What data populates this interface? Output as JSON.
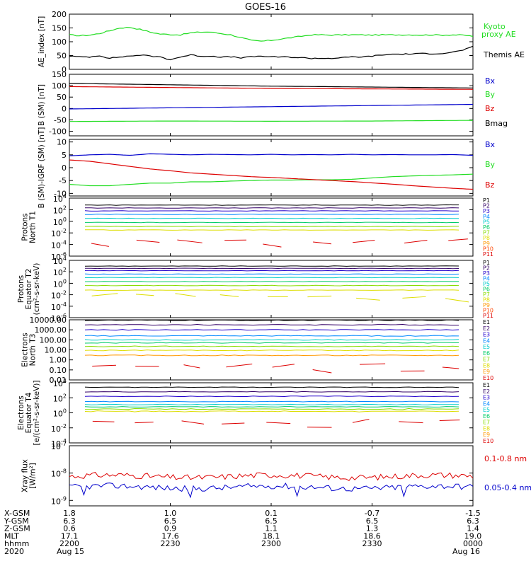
{
  "title": "GOES-16",
  "colors": {
    "black": "#000000",
    "red": "#dd0000",
    "green": "#22dd22",
    "blue": "#0000cc",
    "P": [
      "#000000",
      "#330066",
      "#2200cc",
      "#0088ff",
      "#00cccc",
      "#00cc66",
      "#88dd00",
      "#dddd00",
      "#ff9900",
      "#ff4400",
      "#dd0000"
    ],
    "E": [
      "#000000",
      "#330066",
      "#2200cc",
      "#0088ff",
      "#00cccc",
      "#00cc66",
      "#88dd00",
      "#dddd00",
      "#ff9900",
      "#dd0000"
    ]
  },
  "chart_data": [
    {
      "id": "ae",
      "type": "line",
      "ylabel": "AE_index [nT]",
      "ylim": [
        0,
        200
      ],
      "ticks": [
        "0",
        "50",
        "100",
        "150",
        "200"
      ],
      "tick_values": [
        0,
        50,
        100,
        150,
        200
      ],
      "series": [
        {
          "name": "Kyoto proxy AE",
          "legend": [
            "Kyoto",
            "proxy AE"
          ],
          "color": "#22dd22",
          "values": [
            125,
            122,
            124,
            130,
            140,
            150,
            152,
            145,
            135,
            128,
            126,
            125,
            132,
            135,
            135,
            130,
            125,
            115,
            105,
            102,
            105,
            110,
            115,
            120,
            125,
            125,
            124,
            125,
            125,
            125,
            124,
            125,
            125,
            125,
            125,
            124,
            125,
            124,
            125,
            124,
            120
          ]
        },
        {
          "name": "Themis AE",
          "legend": [
            "Themis AE"
          ],
          "color": "#000000",
          "values": [
            48,
            45,
            45,
            50,
            40,
            45,
            48,
            52,
            48,
            45,
            35,
            45,
            52,
            48,
            48,
            45,
            45,
            42,
            45,
            48,
            45,
            45,
            44,
            42,
            40,
            40,
            40,
            42,
            45,
            45,
            48,
            52,
            55,
            55,
            56,
            57,
            57,
            58,
            62,
            70,
            82
          ]
        }
      ]
    },
    {
      "id": "bsm",
      "type": "line",
      "ylabel": "B (SM) [nT]",
      "ylim": [
        -120,
        150
      ],
      "ticks": [
        "150",
        "100",
        "50",
        "0",
        "-50",
        "-100"
      ],
      "tick_values": [
        150,
        100,
        50,
        0,
        -50,
        -100
      ],
      "series": [
        {
          "name": "Bx",
          "color": "#0000cc",
          "values": [
            -2,
            18
          ]
        },
        {
          "name": "By",
          "color": "#22dd22",
          "values": [
            -57,
            -55,
            -56,
            -55,
            -52
          ]
        },
        {
          "name": "Bz",
          "color": "#dd0000",
          "values": [
            96,
            88,
            84
          ]
        },
        {
          "name": "Bmag",
          "color": "#000000",
          "values": [
            110,
            98,
            90
          ]
        }
      ]
    },
    {
      "id": "bigrf",
      "type": "line",
      "ylabel": "B (SM)-IGRF (SM) [nT]",
      "ylim": [
        -11,
        11
      ],
      "ticks": [
        "10",
        "5",
        "0",
        "-5",
        "-10"
      ],
      "tick_values": [
        10,
        5,
        0,
        -5,
        -10
      ],
      "series": [
        {
          "name": "Bx",
          "color": "#0000cc",
          "values": [
            4.6,
            5.0,
            5.2,
            4.8,
            5.4,
            5.2,
            5.0,
            5.2,
            5.1,
            5.0,
            5.2,
            5.0,
            5.1,
            5.0,
            5.2,
            5.0,
            5.1,
            5.0,
            5.0,
            5.1,
            4.8
          ]
        },
        {
          "name": "By",
          "color": "#22dd22",
          "values": [
            -6.5,
            -7,
            -7,
            -6.5,
            -6,
            -6,
            -5.5,
            -5.5,
            -5.2,
            -5.0,
            -4.8,
            -4.8,
            -4.7,
            -4.7,
            -4.5,
            -4.0,
            -3.5,
            -3.2,
            -3.0,
            -2.8,
            -2.5
          ]
        },
        {
          "name": "Bz",
          "color": "#dd0000",
          "values": [
            3.0,
            2.5,
            1.5,
            0.5,
            -0.5,
            -1.2,
            -2.0,
            -2.5,
            -3.0,
            -3.5,
            -3.8,
            -4.2,
            -4.6,
            -5.0,
            -5.4,
            -5.9,
            -6.4,
            -7.0,
            -7.5,
            -8.0,
            -8.4
          ]
        }
      ]
    },
    {
      "id": "p1",
      "type": "line",
      "ylabel": [
        "Protons",
        "North T1"
      ],
      "log": true,
      "ylim": [
        -6,
        4
      ],
      "ticks": [
        {
          "b": "10",
          "e": "4"
        },
        {
          "b": "10",
          "e": "2"
        },
        {
          "b": "10",
          "e": "0"
        },
        {
          "b": "10",
          "e": "-2"
        },
        {
          "b": "10",
          "e": "-4"
        },
        {
          "b": "10",
          "e": "-6"
        }
      ],
      "tick_exps": [
        4,
        2,
        0,
        -2,
        -4,
        -6
      ],
      "legend": [
        "P1",
        "P2",
        "P3",
        "P4",
        "P5",
        "P6",
        "P7",
        "P8",
        "P9",
        "P10",
        "P11"
      ],
      "series_logs": [
        2.8,
        2.3,
        1.8,
        1.2,
        0.5,
        -0.2,
        -0.9,
        -1.5
      ]
    },
    {
      "id": "p2",
      "type": "line",
      "ylabel": [
        "Protons",
        "Equator T2",
        "(cm²-s-sr-keV)"
      ],
      "log": true,
      "ylim": [
        -6,
        4
      ],
      "ticks": [
        {
          "b": "10",
          "e": "4"
        },
        {
          "b": "10",
          "e": "2"
        },
        {
          "b": "10",
          "e": "0"
        },
        {
          "b": "10",
          "e": "-2"
        },
        {
          "b": "10",
          "e": "-4"
        },
        {
          "b": "10",
          "e": "-6"
        }
      ],
      "tick_exps": [
        4,
        2,
        0,
        -2,
        -4,
        -6
      ],
      "legend": [
        "P1",
        "P2",
        "P3",
        "P4",
        "P5",
        "P6",
        "P7",
        "P8",
        "P9",
        "P10",
        "P11"
      ],
      "series_logs": [
        3.0,
        2.6,
        2.2,
        1.6,
        1.0,
        0.3,
        -0.4,
        -1.2
      ]
    },
    {
      "id": "e3",
      "type": "line",
      "ylabel": [
        "Electrons",
        "North T3"
      ],
      "log": true,
      "ylim": [
        -2,
        4
      ],
      "ticks": [
        "10000.00",
        "1000.00",
        "100.00",
        "10.00",
        "1.00",
        "0.10",
        "0.01"
      ],
      "tick_exps": [
        4,
        3,
        2,
        1,
        0,
        -1,
        -2
      ],
      "legend": [
        "E1",
        "E2",
        "E3",
        "E4",
        "E5",
        "E6",
        "E7",
        "E8",
        "E9",
        "E10"
      ],
      "series_logs": [
        3.95,
        3.5,
        3.0,
        2.4,
        2.0,
        1.7,
        1.35,
        0.95,
        0.45
      ]
    },
    {
      "id": "e4",
      "type": "line",
      "ylabel": [
        "Electrons",
        "Equator T4",
        "[e/(cm²-s-sr-keV)]"
      ],
      "log": true,
      "ylim": [
        -4,
        4
      ],
      "ticks": [
        {
          "b": "10",
          "e": "4"
        },
        {
          "b": "10",
          "e": "2"
        },
        {
          "b": "10",
          "e": "0"
        },
        {
          "b": "10",
          "e": "-2"
        },
        {
          "b": "10",
          "e": "-4"
        }
      ],
      "tick_exps": [
        4,
        2,
        0,
        -2,
        -4
      ],
      "legend": [
        "E1",
        "E2",
        "E3",
        "E4",
        "E5",
        "E6",
        "E7",
        "E8",
        "E9",
        "E10"
      ],
      "series_logs": [
        3.4,
        2.8,
        2.2,
        1.5,
        1.1,
        0.8,
        0.5,
        0.2
      ]
    },
    {
      "id": "xray",
      "type": "line",
      "ylabel": [
        "Xray flux",
        "[W/m²]"
      ],
      "log": true,
      "ylim": [
        -9.2,
        -7
      ],
      "ticks": [
        {
          "b": "10",
          "e": "-7"
        },
        {
          "b": "10",
          "e": "-8"
        },
        {
          "b": "10",
          "e": "-9"
        }
      ],
      "tick_exps": [
        -7,
        -8,
        -9
      ],
      "series": [
        {
          "name": "0.1-0.8 nm",
          "color": "#dd0000",
          "base": -8.12
        },
        {
          "name": "0.05-0.4 nm",
          "color": "#0000cc",
          "base": -8.52
        }
      ]
    }
  ],
  "bottom_axis": {
    "rows": [
      "X-GSM",
      "Y-GSM",
      "Z-GSM",
      "MLT",
      "hhmm",
      "2020"
    ],
    "columns": [
      [
        "1.8",
        "6.3",
        "0.6",
        "17.1",
        "2200",
        "Aug 15"
      ],
      [
        "1.0",
        "6.5",
        "0.9",
        "17.6",
        "2230",
        ""
      ],
      [
        "0.1",
        "6.5",
        "1.1",
        "18.1",
        "2300",
        ""
      ],
      [
        "-0.7",
        "6.5",
        "1.3",
        "18.6",
        "2330",
        ""
      ],
      [
        "-1.5",
        "6.3",
        "1.4",
        "19.0",
        "0000",
        "Aug 16"
      ]
    ]
  }
}
